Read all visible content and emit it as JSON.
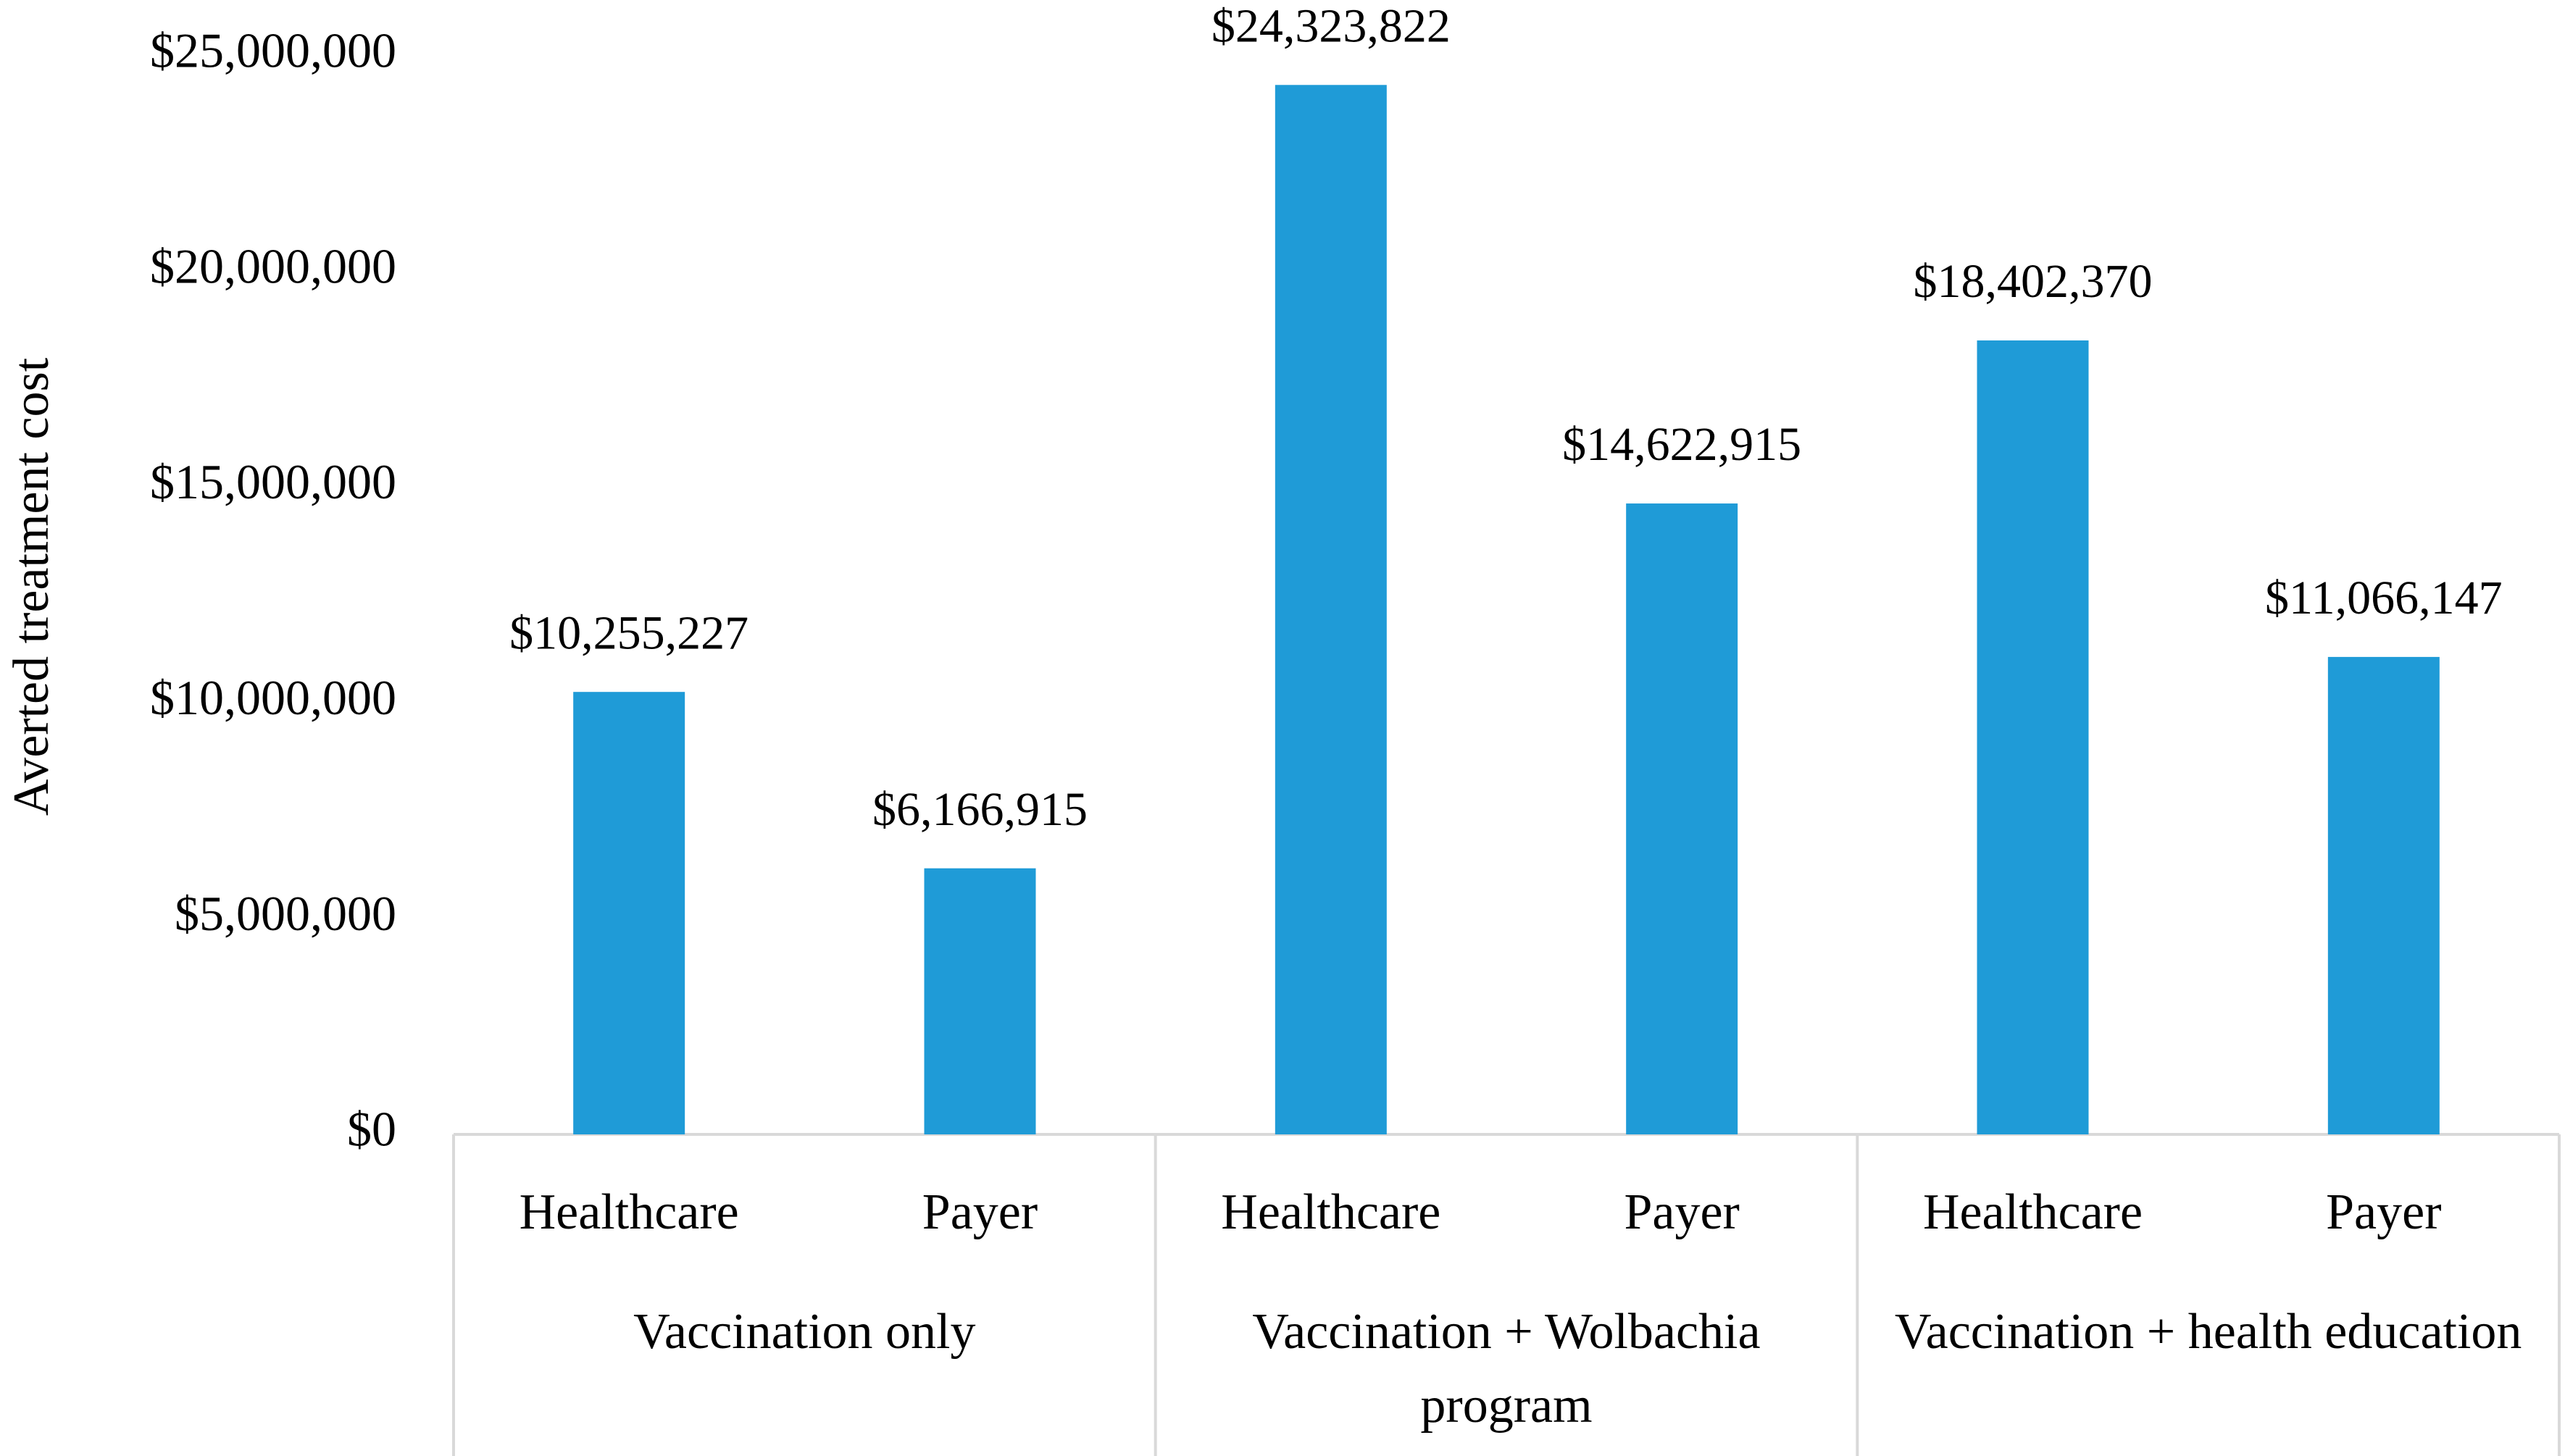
{
  "chart_data": {
    "type": "bar",
    "y_label": "Averted treatment cost",
    "color": "#1f9bd7",
    "groups": [
      {
        "name": "Vaccination only",
        "categories": [
          "Healthcare",
          "Payer"
        ],
        "values": [
          10255227,
          6166915
        ],
        "value_labels": [
          "$10,255,227",
          "$6,166,915"
        ]
      },
      {
        "name": "Vaccination + Wolbachia program",
        "categories": [
          "Healthcare",
          "Payer"
        ],
        "values": [
          24323822,
          14622915
        ],
        "value_labels": [
          "$24,323,822",
          "$14,622,915"
        ]
      },
      {
        "name": "Vaccination + health education",
        "categories": [
          "Healthcare",
          "Payer"
        ],
        "values": [
          18402370,
          11066147
        ],
        "value_labels": [
          "$18,402,370",
          "$11,066,147"
        ]
      }
    ],
    "ylim": [
      0,
      25000000
    ],
    "yticks": [
      {
        "value": 0,
        "label": "$0"
      },
      {
        "value": 5000000,
        "label": "$5,000,000"
      },
      {
        "value": 10000000,
        "label": "$10,000,000"
      },
      {
        "value": 15000000,
        "label": "$15,000,000"
      },
      {
        "value": 20000000,
        "label": "$20,000,000"
      },
      {
        "value": 25000000,
        "label": "$25,000,000"
      }
    ],
    "grid": false
  }
}
